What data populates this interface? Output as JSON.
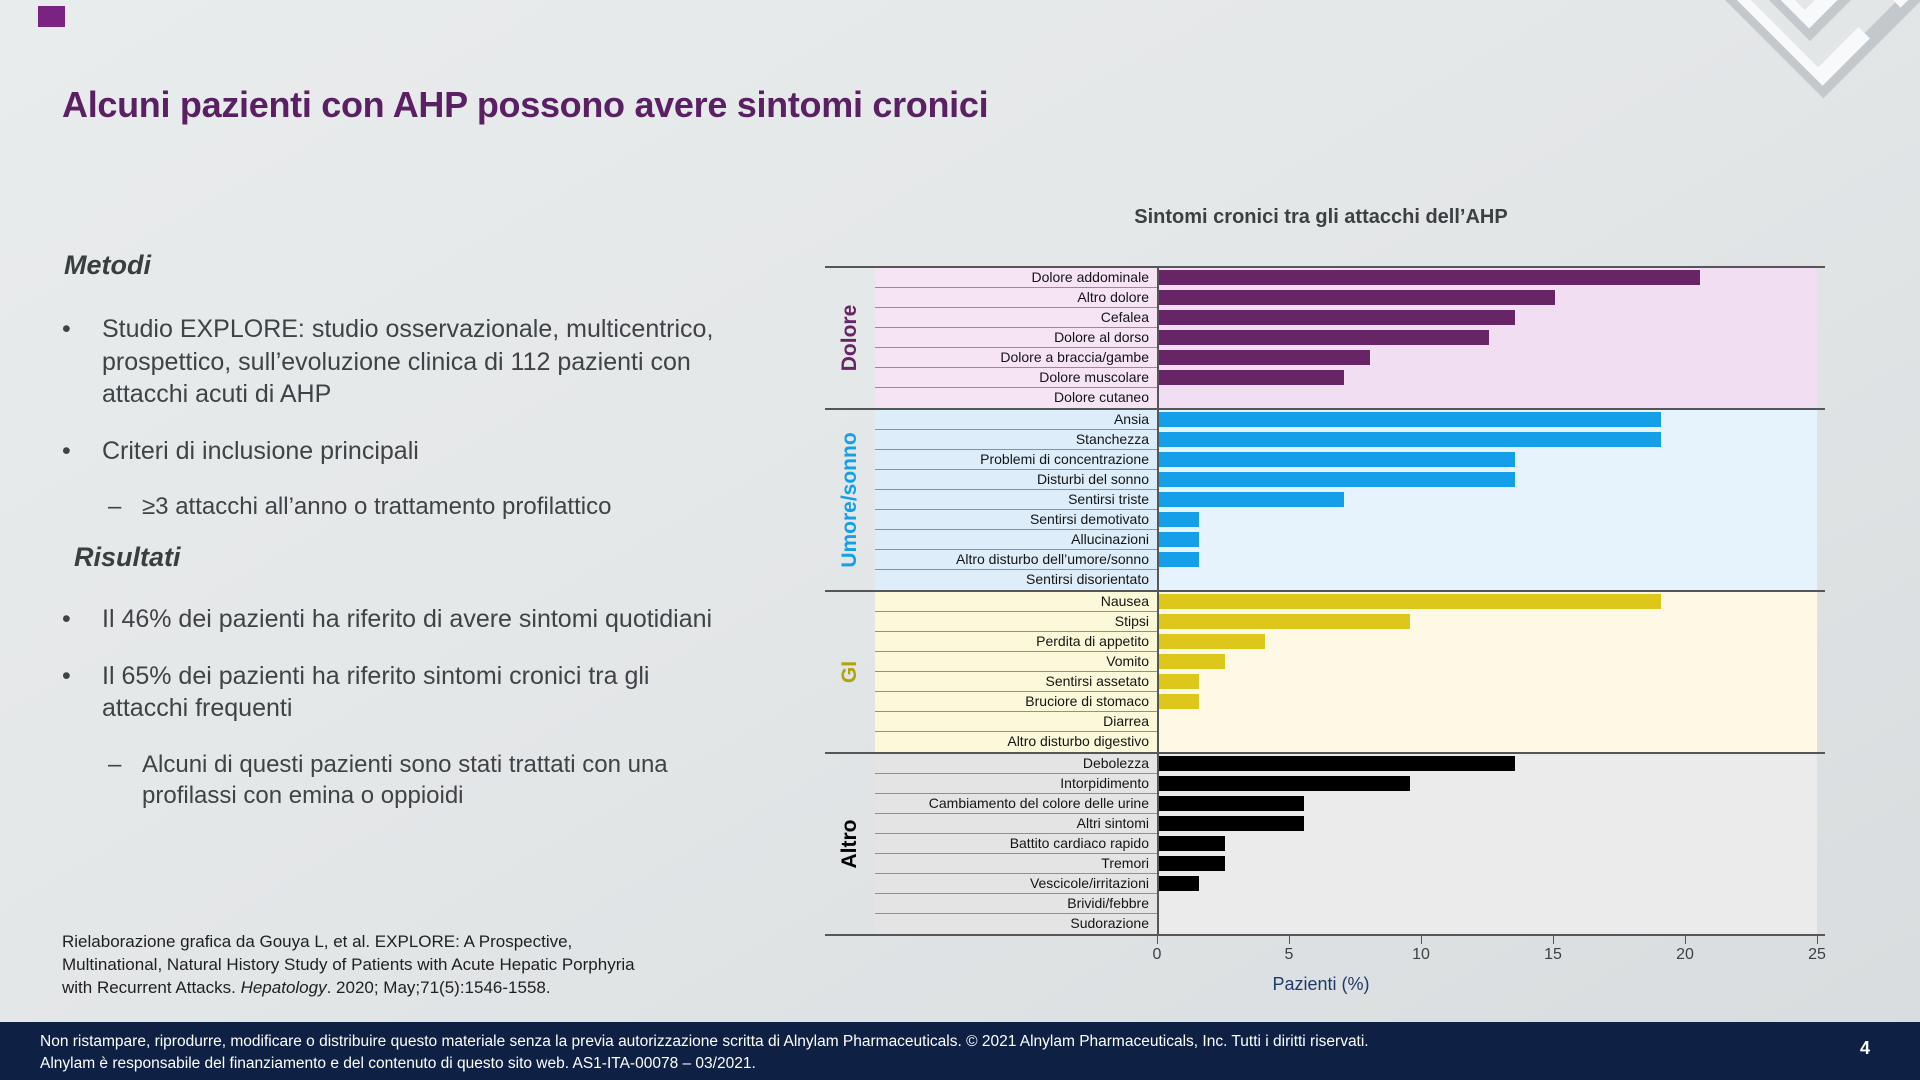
{
  "slide": {
    "title": "Alcuni pazienti con AHP possono avere sintomi cronici",
    "page_number": "4"
  },
  "decor": {
    "corner_square": "purple-corner-square",
    "maze": "isometric-maze-3d-graphic"
  },
  "content": {
    "methods_heading": "Metodi",
    "method_bullet_1": "Studio EXPLORE: studio osservazionale, multicentrico, prospettico, sull’evoluzione clinica di 112 pazienti con attacchi acuti di AHP",
    "method_bullet_2": "Criteri di inclusione principali",
    "method_sub_bullet": "≥3 attacchi all’anno o trattamento profilattico",
    "results_heading": "Risultati",
    "result_bullet_1": "Il 46% dei pazienti ha riferito di avere sintomi quotidiani",
    "result_bullet_2": "Il 65% dei pazienti ha riferito sintomi cronici tra gli attacchi frequenti",
    "result_sub_bullet": "Alcuni di questi pazienti sono stati trattati con una profilassi con emina o oppioidi",
    "bullet_glyph": "•",
    "dash_glyph": "–"
  },
  "citation": {
    "line1": "Rielaborazione grafica da Gouya L, et al. EXPLORE: A Prospective,",
    "line2": "Multinational, Natural History Study of Patients with Acute Hepatic Porphyria",
    "line3_prefix": "with Recurrent Attacks. ",
    "line3_italic": "Hepatology",
    "line3_suffix": ". 2020; May;71(5):1546-1558."
  },
  "footer": {
    "line1": "Non ristampare, riprodurre, modificare o distribuire questo materiale senza la previa autorizzazione scritta di Alnylam Pharmaceuticals. © 2021 Alnylam Pharmaceuticals, Inc.  Tutti i diritti riservati.",
    "line2": "Alnylam è responsabile del finanziamento e del contenuto di questo sito web. AS1-ITA-00078 – 03/2021."
  },
  "chart_data": {
    "type": "bar",
    "orientation": "horizontal",
    "title": "Sintomi cronici tra gli attacchi dell’AHP",
    "xlabel": "Pazienti (%)",
    "xlim": [
      0,
      25
    ],
    "xticks": [
      0,
      5,
      10,
      15,
      20,
      25
    ],
    "grid": false,
    "legend": "none",
    "groups": [
      {
        "name": "Dolore",
        "bar_color": "#672566",
        "label_color": "#672566",
        "band_label_bg": "#f6e4f5",
        "band_plot_bg": "#f2def2",
        "items": [
          {
            "label": "Dolore addominale",
            "value": 20.5
          },
          {
            "label": "Altro dolore",
            "value": 15
          },
          {
            "label": "Cefalea",
            "value": 13.5
          },
          {
            "label": "Dolore al dorso",
            "value": 12.5
          },
          {
            "label": "Dolore a braccia/gambe",
            "value": 8
          },
          {
            "label": "Dolore muscolare",
            "value": 7
          },
          {
            "label": "Dolore cutaneo",
            "value": 0
          }
        ]
      },
      {
        "name": "Umore/sonno",
        "bar_color": "#149fe8",
        "label_color": "#149fe8",
        "band_label_bg": "#ddeefa",
        "band_plot_bg": "#e7f3fc",
        "items": [
          {
            "label": "Ansia",
            "value": 19
          },
          {
            "label": "Stanchezza",
            "value": 19
          },
          {
            "label": "Problemi di concentrazione",
            "value": 13.5
          },
          {
            "label": "Disturbi del sonno",
            "value": 13.5
          },
          {
            "label": "Sentirsi triste",
            "value": 7
          },
          {
            "label": "Sentirsi demotivato",
            "value": 1.5
          },
          {
            "label": "Allucinazioni",
            "value": 1.5
          },
          {
            "label": "Altro disturbo dell’umore/sonno",
            "value": 1.5
          },
          {
            "label": "Sentirsi disorientato",
            "value": 0
          }
        ]
      },
      {
        "name": "GI",
        "bar_color": "#dcc71a",
        "label_color": "#b1a30e",
        "band_label_bg": "#fcf8da",
        "band_plot_bg": "#fdf9e4",
        "items": [
          {
            "label": "Nausea",
            "value": 19
          },
          {
            "label": "Stipsi",
            "value": 9.5
          },
          {
            "label": "Perdita di appetito",
            "value": 4
          },
          {
            "label": "Vomito",
            "value": 2.5
          },
          {
            "label": "Sentirsi assetato",
            "value": 1.5
          },
          {
            "label": "Bruciore di stomaco",
            "value": 1.5
          },
          {
            "label": "Diarrea",
            "value": 0
          },
          {
            "label": "Altro disturbo digestivo",
            "value": 0
          }
        ]
      },
      {
        "name": "Altro",
        "bar_color": "#000000",
        "label_color": "#000000",
        "band_label_bg": "#e4e4e4",
        "band_plot_bg": "#ebebeb",
        "items": [
          {
            "label": "Debolezza",
            "value": 13.5
          },
          {
            "label": "Intorpidimento",
            "value": 9.5
          },
          {
            "label": "Cambiamento del colore delle urine",
            "value": 5.5
          },
          {
            "label": "Altri sintomi",
            "value": 5.5
          },
          {
            "label": "Battito cardiaco rapido",
            "value": 2.5
          },
          {
            "label": "Tremori",
            "value": 2.5
          },
          {
            "label": "Vescicole/irritazioni",
            "value": 1.5
          },
          {
            "label": "Brividi/febbre",
            "value": 0
          },
          {
            "label": "Sudorazione",
            "value": 0
          }
        ]
      }
    ]
  }
}
